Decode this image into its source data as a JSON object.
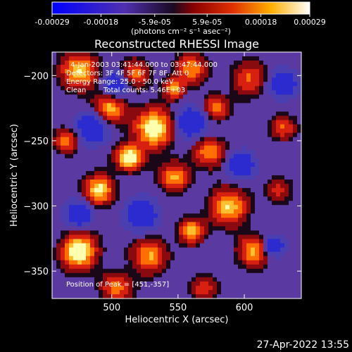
{
  "chart_data": {
    "type": "heatmap",
    "title": "Reconstructed RHESSI Image",
    "xlabel": "Heliocentric X (arcsec)",
    "ylabel": "Heliocentric Y (arcsec)",
    "xlim": [
      455,
      643
    ],
    "ylim": [
      -371,
      -182
    ],
    "x_ticks": [
      "500",
      "550",
      "600"
    ],
    "x_tick_values": [
      500,
      550,
      600
    ],
    "y_ticks": [
      "-200",
      "-250",
      "-300",
      "-350"
    ],
    "y_tick_values": [
      -200,
      -250,
      -300,
      -350
    ],
    "colorbar": {
      "ticks": [
        "-0.00029",
        "-0.00018",
        "-5.9e-05",
        "5.9e-05",
        "0.00018",
        "0.00029"
      ],
      "tick_values": [
        -0.00029,
        -0.00018,
        -5.9e-05,
        5.9e-05,
        0.00018,
        0.00029
      ],
      "range": [
        -0.00029,
        0.00029
      ],
      "units_label": "(photons cm⁻² s⁻¹ asec⁻²)"
    },
    "annotations": {
      "time_range": "4-Jan-2003 03:41:44.000 to 03:47:44.000",
      "detectors": "Detectors: 3F 4F 5F 6F 7F 8F, Att 0",
      "energy": "Energy Range: 25.0 - 50.0 keV",
      "algorithm": "Clean",
      "total_counts": "Total counts: 5.46E+03",
      "peak": "Position of Peak = [451,-357]"
    },
    "grid": false,
    "colormap": [
      "#0000ff",
      "#4b3aa8",
      "#000000",
      "#c01010",
      "#ff7700",
      "#ffff90",
      "#ffffff"
    ]
  },
  "footer": {
    "timestamp": "27-Apr-2022 13:55"
  }
}
